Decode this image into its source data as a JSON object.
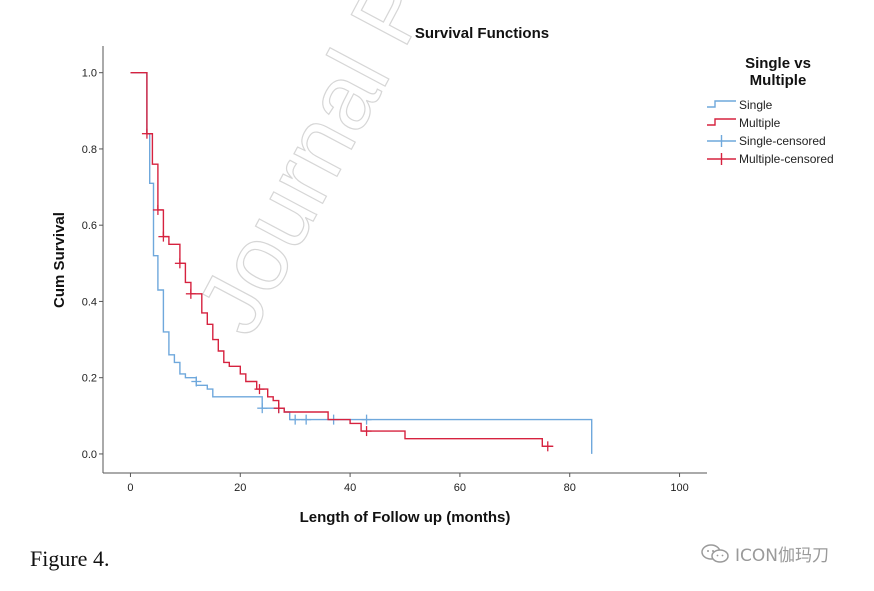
{
  "chart_data": {
    "type": "line",
    "title": "Survival Functions",
    "xlabel": "Length of Follow up (months)",
    "ylabel": "Cum Survival",
    "xlim": [
      -5,
      105
    ],
    "ylim": [
      -0.05,
      1.07
    ],
    "x_ticks": [
      "0",
      "20",
      "40",
      "60",
      "80",
      "100"
    ],
    "x_tick_values": [
      0,
      20,
      40,
      60,
      80,
      100
    ],
    "y_ticks": [
      "0.0",
      "0.2",
      "0.4",
      "0.6",
      "0.8",
      "1.0"
    ],
    "y_tick_values": [
      0.0,
      0.2,
      0.4,
      0.6,
      0.8,
      1.0
    ],
    "legend_title": "Single vs Multiple",
    "legend_position": "right",
    "legend": [
      "Single",
      "Multiple",
      "Single-censored",
      "Multiple-censored"
    ],
    "series": [
      {
        "name": "Single",
        "color": "#6fa8dc",
        "step": [
          [
            0,
            1.0
          ],
          [
            3,
            1.0
          ],
          [
            3,
            0.84
          ],
          [
            3.5,
            0.84
          ],
          [
            3.5,
            0.71
          ],
          [
            4.2,
            0.71
          ],
          [
            4.2,
            0.52
          ],
          [
            5,
            0.52
          ],
          [
            5,
            0.43
          ],
          [
            6,
            0.43
          ],
          [
            6,
            0.32
          ],
          [
            7,
            0.32
          ],
          [
            7,
            0.26
          ],
          [
            8,
            0.26
          ],
          [
            8,
            0.24
          ],
          [
            9,
            0.24
          ],
          [
            9,
            0.21
          ],
          [
            10,
            0.21
          ],
          [
            10,
            0.2
          ],
          [
            12,
            0.2
          ],
          [
            12,
            0.18
          ],
          [
            14,
            0.18
          ],
          [
            14,
            0.17
          ],
          [
            15,
            0.17
          ],
          [
            15,
            0.15
          ],
          [
            24,
            0.15
          ],
          [
            24,
            0.12
          ],
          [
            28,
            0.12
          ],
          [
            28,
            0.11
          ],
          [
            29,
            0.11
          ],
          [
            29,
            0.09
          ],
          [
            84,
            0.09
          ],
          [
            84,
            0.0
          ]
        ],
        "censored": [
          [
            12,
            0.19
          ],
          [
            24,
            0.12
          ],
          [
            27,
            0.12
          ],
          [
            30,
            0.09
          ],
          [
            32,
            0.09
          ],
          [
            37,
            0.09
          ],
          [
            43,
            0.09
          ]
        ]
      },
      {
        "name": "Multiple",
        "color": "#d6223f",
        "step": [
          [
            0,
            1.0
          ],
          [
            3,
            1.0
          ],
          [
            3,
            0.84
          ],
          [
            4,
            0.84
          ],
          [
            4,
            0.76
          ],
          [
            5,
            0.76
          ],
          [
            5,
            0.64
          ],
          [
            6,
            0.64
          ],
          [
            6,
            0.57
          ],
          [
            7,
            0.57
          ],
          [
            7,
            0.55
          ],
          [
            9,
            0.55
          ],
          [
            9,
            0.5
          ],
          [
            10,
            0.5
          ],
          [
            10,
            0.45
          ],
          [
            11,
            0.45
          ],
          [
            11,
            0.42
          ],
          [
            13,
            0.42
          ],
          [
            13,
            0.37
          ],
          [
            14,
            0.37
          ],
          [
            14,
            0.34
          ],
          [
            15,
            0.34
          ],
          [
            15,
            0.3
          ],
          [
            16,
            0.3
          ],
          [
            16,
            0.27
          ],
          [
            17,
            0.27
          ],
          [
            17,
            0.24
          ],
          [
            18,
            0.24
          ],
          [
            18,
            0.23
          ],
          [
            20,
            0.23
          ],
          [
            20,
            0.21
          ],
          [
            21,
            0.21
          ],
          [
            21,
            0.19
          ],
          [
            23,
            0.19
          ],
          [
            23,
            0.17
          ],
          [
            25,
            0.17
          ],
          [
            25,
            0.15
          ],
          [
            26,
            0.15
          ],
          [
            26,
            0.14
          ],
          [
            27,
            0.14
          ],
          [
            27,
            0.12
          ],
          [
            28,
            0.12
          ],
          [
            28,
            0.11
          ],
          [
            36,
            0.11
          ],
          [
            36,
            0.09
          ],
          [
            40,
            0.09
          ],
          [
            40,
            0.08
          ],
          [
            42,
            0.08
          ],
          [
            42,
            0.06
          ],
          [
            50,
            0.06
          ],
          [
            50,
            0.04
          ],
          [
            75,
            0.04
          ],
          [
            75,
            0.02
          ],
          [
            77,
            0.02
          ]
        ],
        "censored": [
          [
            3,
            0.84
          ],
          [
            5,
            0.64
          ],
          [
            6,
            0.57
          ],
          [
            9,
            0.5
          ],
          [
            11,
            0.42
          ],
          [
            23.5,
            0.17
          ],
          [
            27,
            0.12
          ],
          [
            43,
            0.06
          ],
          [
            76,
            0.02
          ]
        ]
      }
    ]
  },
  "caption": "Figure 4.",
  "watermark": "Journal Pre",
  "brand": "ICON伽玛刀"
}
